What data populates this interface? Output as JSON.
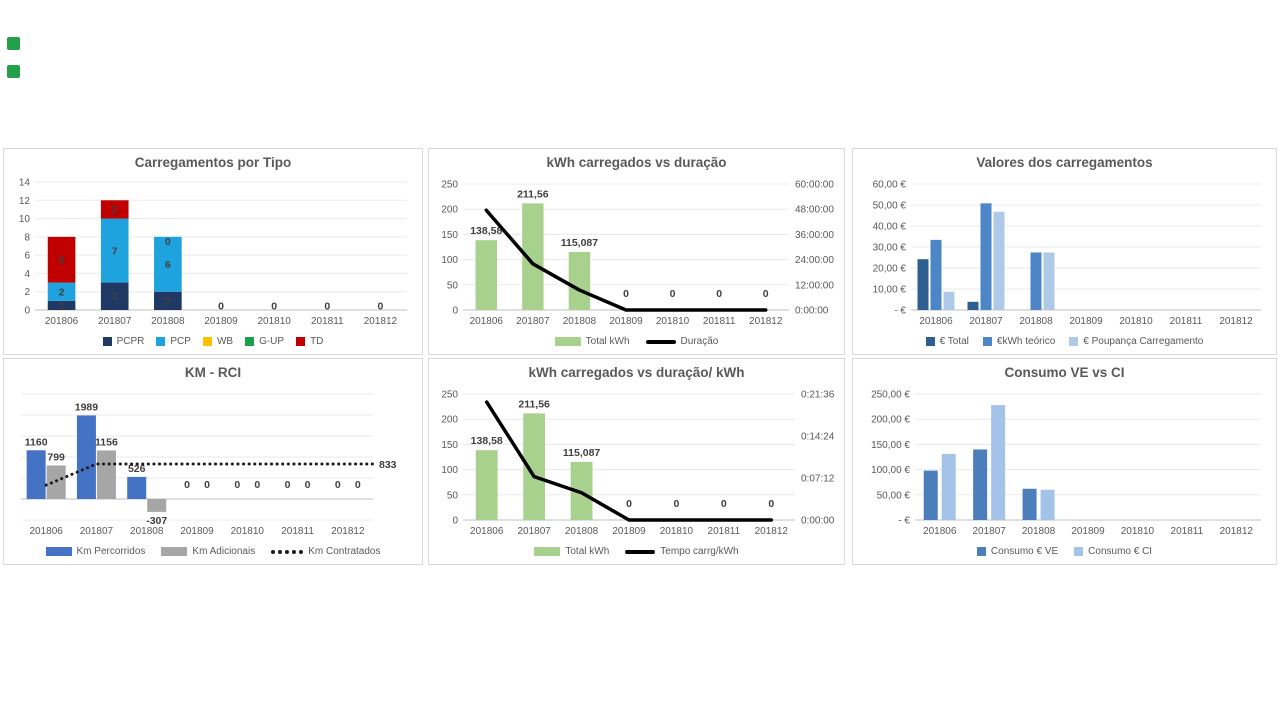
{
  "page": {
    "background": "#FFFFFF"
  },
  "top_left_markers": {
    "color": "#24A148",
    "count": 2
  },
  "chart_data": [
    {
      "id": "carregamentos-por-tipo",
      "type": "bar",
      "stacked": true,
      "title": "Carregamentos por Tipo",
      "categories": [
        "201806",
        "201807",
        "201808",
        "201809",
        "201810",
        "201811",
        "201812"
      ],
      "ylim": [
        0,
        14
      ],
      "left_ticks": [
        "14",
        "12",
        "10",
        "8",
        "6",
        "4",
        "2",
        "0"
      ],
      "series": [
        {
          "name": "PCPR",
          "color": "#1F3864",
          "label_color": "#FFFFFF",
          "values": [
            1,
            3,
            2,
            0,
            0,
            0,
            0
          ]
        },
        {
          "name": "PCP",
          "color": "#1FA3DF",
          "label_color": "#1F3864",
          "values": [
            2,
            7,
            6,
            0,
            0,
            0,
            0
          ]
        },
        {
          "name": "WB",
          "color": "#FFC000",
          "label_color": "#FFFFFF",
          "values": [
            0,
            0,
            0,
            0,
            0,
            0,
            0
          ]
        },
        {
          "name": "G-UP",
          "color": "#1E9E4F",
          "label_color": "#FFFFFF",
          "values": [
            0,
            0,
            0,
            0,
            0,
            0,
            0
          ]
        },
        {
          "name": "TD",
          "color": "#C00000",
          "label_color": "#FFFFFF",
          "values": [
            5,
            2,
            0,
            0,
            0,
            0,
            0
          ]
        }
      ],
      "extra_labels": [
        {
          "ci": 2,
          "v": 7.5,
          "text": "0",
          "color": "#FFFFFF"
        },
        {
          "ci": 3,
          "v": 0.45,
          "text": "0",
          "color": "#D5D5D5"
        },
        {
          "ci": 4,
          "v": 0.45,
          "text": "0",
          "color": "#D5D5D5"
        },
        {
          "ci": 5,
          "v": 0.45,
          "text": "0",
          "color": "#D5D5D5"
        },
        {
          "ci": 6,
          "v": 0.45,
          "text": "0",
          "color": "#D5D5D5"
        }
      ],
      "legend": [
        {
          "label": "PCPR",
          "marker": "sq",
          "color": "#1F3864"
        },
        {
          "label": "PCP",
          "marker": "sq",
          "color": "#1FA3DF"
        },
        {
          "label": "WB",
          "marker": "sq",
          "color": "#FFC000"
        },
        {
          "label": "G-UP",
          "marker": "sq",
          "color": "#1E9E4F"
        },
        {
          "label": "TD",
          "marker": "sq",
          "color": "#C00000"
        }
      ]
    },
    {
      "id": "kwh-carregados-vs-duracao",
      "type": "bar",
      "overlay": "line",
      "title": "kWh carregados vs duração",
      "categories": [
        "201806",
        "201807",
        "201808",
        "201809",
        "201810",
        "201811",
        "201812"
      ],
      "ylim": [
        0,
        250
      ],
      "left_ticks": [
        "250",
        "200",
        "150",
        "100",
        "50",
        "0"
      ],
      "right_ticks": [
        "60:00:00",
        "48:00:00",
        "36:00:00",
        "24:00:00",
        "12:00:00",
        "0:00:00"
      ],
      "bars": {
        "name": "Total kWh",
        "color": "#A9D18E",
        "values": [
          138.58,
          211.56,
          115.087,
          0,
          0,
          0,
          0
        ],
        "labels": [
          "138,58",
          "211,56",
          "115,087",
          "0",
          "0",
          "0",
          "0"
        ]
      },
      "line": {
        "name": "Duração",
        "color": "#000000",
        "axis": "right",
        "unit": "hours",
        "max": 60,
        "values": [
          47.5,
          22,
          9.5,
          0,
          0,
          0,
          0
        ]
      },
      "legend": [
        {
          "label": "Total kWh",
          "marker": "bar",
          "color": "#A9D18E"
        },
        {
          "label": "Duração",
          "marker": "line",
          "color": "#000000"
        }
      ]
    },
    {
      "id": "valores-dos-carregamentos",
      "type": "bar",
      "title": "Valores dos carregamentos",
      "categories": [
        "201806",
        "201807",
        "201808",
        "201809",
        "201810",
        "201811",
        "201812"
      ],
      "ylim": [
        0,
        60
      ],
      "left_ticks": [
        "60,00 €",
        "50,00 €",
        "40,00 €",
        "30,00 €",
        "20,00 €",
        "10,00 €",
        "-   €"
      ],
      "series": [
        {
          "name": "€ Total",
          "color": "#2E5F91",
          "values": [
            24.2,
            3.9,
            0,
            0,
            0,
            0,
            0
          ]
        },
        {
          "name": "€kWh teórico",
          "color": "#4C86C6",
          "values": [
            33.4,
            50.8,
            27.4,
            0,
            0,
            0,
            0
          ]
        },
        {
          "name": "€ Poupança Carregamento",
          "color": "#AFC9E8",
          "values": [
            8.7,
            46.8,
            27.4,
            0,
            0,
            0,
            0
          ]
        }
      ],
      "legend": [
        {
          "label": "€ Total",
          "marker": "sq",
          "color": "#2E5F91"
        },
        {
          "label": "€kWh teórico",
          "marker": "sq",
          "color": "#4C86C6"
        },
        {
          "label": "€ Poupança Carregamento",
          "marker": "sq",
          "color": "#AFC9E8"
        }
      ]
    },
    {
      "id": "km-rci",
      "type": "bar",
      "overlay": "line",
      "title": "KM - RCI",
      "categories": [
        "201806",
        "201807",
        "201808",
        "201809",
        "201810",
        "201811",
        "201812"
      ],
      "ylim": [
        -500,
        2500
      ],
      "grid_step": 500,
      "left_ticks": [],
      "series": [
        {
          "name": "Km Percorridos",
          "color": "#4472C4",
          "values": [
            1160,
            1989,
            526,
            0,
            0,
            0,
            0
          ],
          "labels": [
            "1160",
            "1989",
            "526",
            "0",
            "0",
            "0",
            "0"
          ]
        },
        {
          "name": "Km Adicionais",
          "color": "#A6A6A6",
          "values": [
            799,
            1156,
            -307,
            0,
            0,
            0,
            0
          ],
          "labels": [
            "799",
            "1156",
            "-307",
            "0",
            "0",
            "0",
            "0"
          ]
        }
      ],
      "line": {
        "name": "Km Contratados",
        "color": "#1A1A1A",
        "style": "dotted",
        "axis": "left",
        "values": [
          330,
          833,
          833,
          833,
          833,
          833,
          833
        ],
        "extend": true,
        "end_label": "833"
      },
      "legend": [
        {
          "label": "Km Percorridos",
          "marker": "bar",
          "color": "#4472C4"
        },
        {
          "label": "Km Adicionais",
          "marker": "bar",
          "color": "#A6A6A6"
        },
        {
          "label": "Km Contratados",
          "marker": "dots",
          "color": "#1A1A1A"
        }
      ]
    },
    {
      "id": "kwh-carregados-vs-duracao-kwh",
      "type": "bar",
      "overlay": "line",
      "title": "kWh carregados vs duração/ kWh",
      "categories": [
        "201806",
        "201807",
        "201808",
        "201809",
        "201810",
        "201811",
        "201812"
      ],
      "ylim": [
        0,
        250
      ],
      "left_ticks": [
        "250",
        "200",
        "150",
        "100",
        "50",
        "0"
      ],
      "right_ticks": [
        "0:21:36",
        "0:14:24",
        "0:07:12",
        "0:00:00"
      ],
      "bars": {
        "name": "Total kWh",
        "color": "#A9D18E",
        "values": [
          138.58,
          211.56,
          115.087,
          0,
          0,
          0,
          0
        ],
        "labels": [
          "138,58",
          "211,56",
          "115,087",
          "0",
          "0",
          "0",
          "0"
        ]
      },
      "line": {
        "name": "Tempo carrg/kWh",
        "color": "#000000",
        "axis": "right",
        "unit": "seconds",
        "max": 1296,
        "values": [
          1213,
          446,
          280,
          0,
          0,
          0,
          0
        ]
      },
      "legend": [
        {
          "label": "Total kWh",
          "marker": "bar",
          "color": "#A9D18E"
        },
        {
          "label": "Tempo carrg/kWh",
          "marker": "line",
          "color": "#000000"
        }
      ]
    },
    {
      "id": "consumo-ve-vs-ci",
      "type": "bar",
      "title": "Consumo VE vs CI",
      "categories": [
        "201806",
        "201807",
        "201808",
        "201809",
        "201810",
        "201811",
        "201812"
      ],
      "ylim": [
        0,
        250
      ],
      "left_ticks": [
        "250,00 €",
        "200,00 €",
        "150,00 €",
        "100,00 €",
        "50,00 €",
        "-   €"
      ],
      "series": [
        {
          "name": "Consumo € VE",
          "color": "#4C7EBB",
          "values": [
            98,
            140,
            62,
            0,
            0,
            0,
            0
          ]
        },
        {
          "name": "Consumo € CI",
          "color": "#A3C4E8",
          "values": [
            131,
            228,
            60,
            0,
            0,
            0,
            0
          ]
        }
      ],
      "legend": [
        {
          "label": "Consumo € VE",
          "marker": "sq",
          "color": "#4C7EBB"
        },
        {
          "label": "Consumo € CI",
          "marker": "sq",
          "color": "#A3C4E8"
        }
      ]
    }
  ]
}
